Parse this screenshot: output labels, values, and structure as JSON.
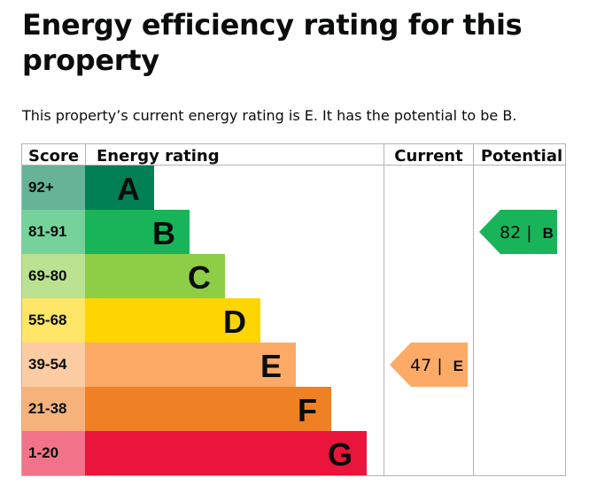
{
  "page": {
    "title": "Energy efficiency rating for this property",
    "summary": "This property’s current energy rating is E. It has the potential to be B."
  },
  "chart_data": {
    "type": "bar",
    "headers": {
      "score": "Score",
      "rating": "Energy rating",
      "current": "Current",
      "potential": "Potential"
    },
    "bands": [
      {
        "letter": "A",
        "range": "92+",
        "color": "#008054",
        "score_color": "#66b398"
      },
      {
        "letter": "B",
        "range": "81-91",
        "color": "#19b459",
        "score_color": "#75d29b"
      },
      {
        "letter": "C",
        "range": "69-80",
        "color": "#8dce46",
        "score_color": "#bbe290"
      },
      {
        "letter": "D",
        "range": "55-68",
        "color": "#ffd500",
        "score_color": "#ffe666"
      },
      {
        "letter": "E",
        "range": "39-54",
        "color": "#fcaa65",
        "score_color": "#fdcca3"
      },
      {
        "letter": "F",
        "range": "21-38",
        "color": "#ef8023",
        "score_color": "#f5b37b"
      },
      {
        "letter": "G",
        "range": "1-20",
        "color": "#e9153b",
        "score_color": "#f27389"
      }
    ],
    "current": {
      "value": 47,
      "letter": "E",
      "separator": "|",
      "color": "#fcaa65"
    },
    "potential": {
      "value": 82,
      "letter": "B",
      "separator": "|",
      "color": "#19b459"
    }
  }
}
